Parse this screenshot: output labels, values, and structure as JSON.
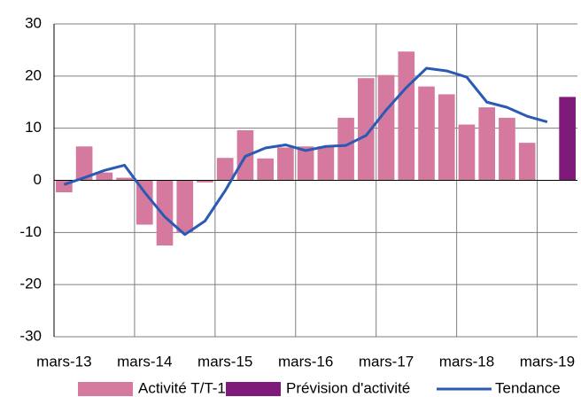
{
  "chart_data": {
    "type": "bar",
    "categories": [
      "mars-13",
      null,
      null,
      null,
      "mars-14",
      null,
      null,
      null,
      "mars-15",
      null,
      null,
      null,
      "mars-16",
      null,
      null,
      null,
      "mars-17",
      null,
      null,
      null,
      "mars-18",
      null,
      null,
      null,
      "mars-19",
      null
    ],
    "series": [
      {
        "name": "Activité T/T-1",
        "type": "bar",
        "color": "#d6799e",
        "values": [
          -2.3,
          6.5,
          1.5,
          0.5,
          -8.5,
          -12.5,
          -10,
          -0.4,
          4.3,
          9.6,
          4.2,
          6.3,
          6.5,
          6.5,
          12,
          19.6,
          20.2,
          24.7,
          18,
          16.5,
          10.7,
          14,
          12,
          7.2,
          null,
          null
        ]
      },
      {
        "name": "Prévision d'activité",
        "type": "bar",
        "color": "#7f1a7a",
        "values": [
          null,
          null,
          null,
          null,
          null,
          null,
          null,
          null,
          null,
          null,
          null,
          null,
          null,
          null,
          null,
          null,
          null,
          null,
          null,
          null,
          null,
          null,
          null,
          null,
          null,
          16
        ]
      },
      {
        "name": "Tendance",
        "type": "line",
        "color": "#2a5ab3",
        "values": [
          -0.8,
          0.5,
          1.9,
          2.9,
          -2.3,
          -7,
          -10.4,
          -7.8,
          -2,
          4.6,
          6.2,
          6.8,
          5.7,
          6.5,
          6.7,
          8.6,
          13.5,
          17.8,
          21.5,
          21,
          19.8,
          15,
          14,
          12.3,
          11.2,
          null
        ]
      }
    ],
    "ylim": [
      -30,
      30
    ],
    "yticks": [
      -30,
      -20,
      -10,
      0,
      10,
      20,
      30
    ],
    "grid": true,
    "legend": "bottom"
  }
}
